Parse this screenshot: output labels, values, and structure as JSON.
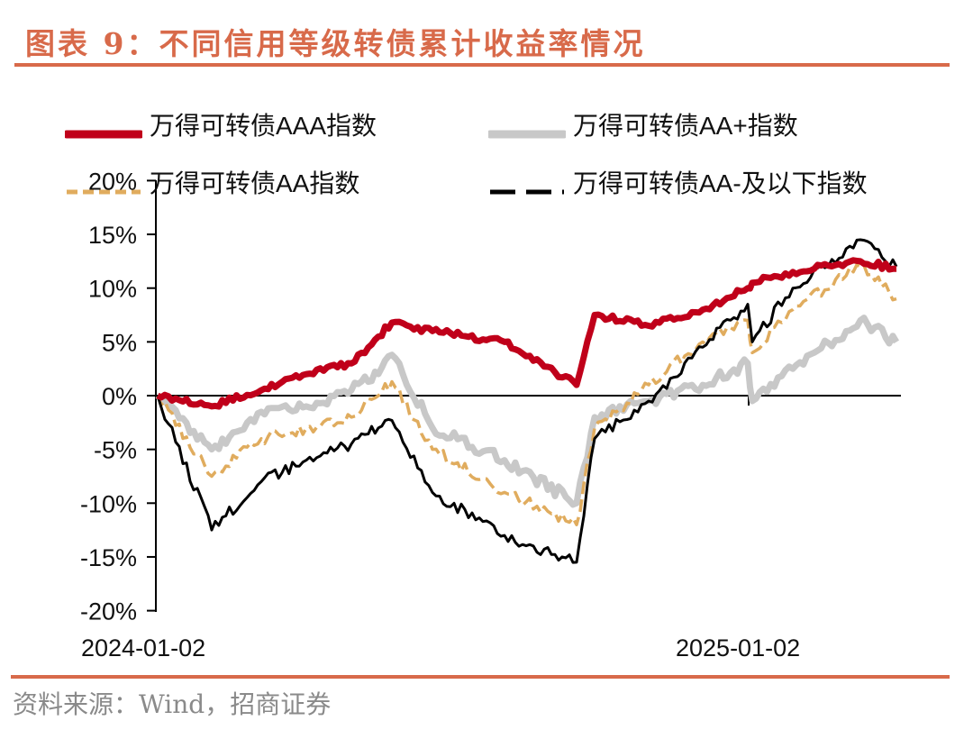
{
  "header": {
    "title": "图表 9：不同信用等级转债累计收益率情况"
  },
  "footer": {
    "source": "资料来源：Wind，招商证券"
  },
  "legend": [
    {
      "label": "万得可转债AAA指数",
      "color": "#c0001a",
      "style": "solid-thick"
    },
    {
      "label": "万得可转债AA+指数",
      "color": "#c8c8c8",
      "style": "solid-thick"
    },
    {
      "label": "万得可转债AA指数",
      "color": "#e0ac5e",
      "style": "dashed"
    },
    {
      "label": "万得可转债AA-及以下指数",
      "color": "#000000",
      "style": "long-dash"
    }
  ],
  "axis": {
    "y_ticks": [
      "20%",
      "15%",
      "10%",
      "5%",
      "0%",
      "-5%",
      "-10%",
      "-15%",
      "-20%"
    ],
    "x_ticks": [
      "2024-01-02",
      "2025-01-02"
    ]
  },
  "chart_data": {
    "type": "line",
    "title": "不同信用等级转债累计收益率情况",
    "xlabel": "",
    "ylabel": "",
    "ylim": [
      -20,
      20
    ],
    "y_ticks": [
      -20,
      -15,
      -10,
      -5,
      0,
      5,
      10,
      15,
      20
    ],
    "x_tick_labels": [
      "2024-01-02",
      "2025-01-02"
    ],
    "grid": false,
    "legend_position": "top",
    "x": [
      "2024-01",
      "2024-02-early",
      "2024-02-mid",
      "2024-03",
      "2024-04",
      "2024-05",
      "2024-06",
      "2024-07",
      "2024-08",
      "2024-09-mid",
      "2024-09-end",
      "2024-10",
      "2024-11",
      "2024-12",
      "2025-01-02",
      "2025-02",
      "2025-03-mid",
      "2025-03-end"
    ],
    "series": [
      {
        "name": "万得可转债AAA指数",
        "color": "#c0001a",
        "values": [
          0.0,
          -1.0,
          0.5,
          2.0,
          3.0,
          5.5,
          6.8,
          6.0,
          5.0,
          1.0,
          7.5,
          6.5,
          8.0,
          10.0,
          10.5,
          11.5,
          12.5,
          11.8
        ]
      },
      {
        "name": "万得可转债AA+指数",
        "color": "#c8c8c8",
        "values": [
          0.0,
          -5.0,
          -1.5,
          -1.0,
          0.5,
          2.0,
          3.8,
          -3.0,
          -6.0,
          -10.0,
          -2.0,
          -0.5,
          1.0,
          3.0,
          -0.5,
          2.5,
          7.0,
          5.0
        ]
      },
      {
        "name": "万得可转债AA指数",
        "color": "#e0ac5e",
        "values": [
          0.0,
          -7.5,
          -4.0,
          -3.0,
          -2.0,
          0.0,
          1.3,
          -5.0,
          -9.0,
          -12.0,
          -3.0,
          1.0,
          5.0,
          7.0,
          4.0,
          8.0,
          12.0,
          9.0
        ]
      },
      {
        "name": "万得可转债AA-及以下指数",
        "color": "#000000",
        "values": [
          0.0,
          -12.5,
          -8.0,
          -6.0,
          -4.5,
          -3.0,
          -2.3,
          -9.0,
          -13.0,
          -15.5,
          -4.0,
          -0.5,
          4.5,
          8.5,
          5.0,
          10.0,
          14.5,
          12.0
        ]
      }
    ]
  }
}
